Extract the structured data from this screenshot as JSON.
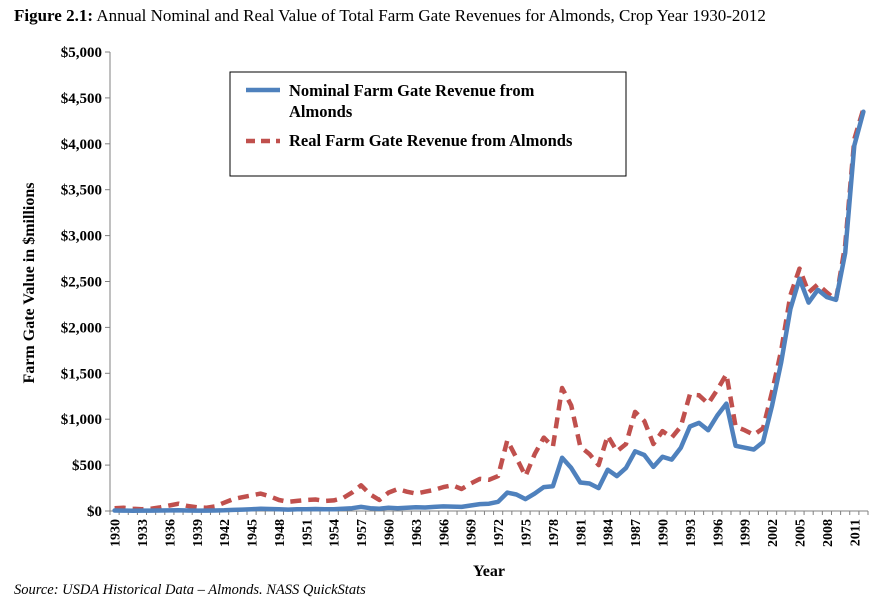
{
  "figure": {
    "label": "Figure 2.1:",
    "title": "Annual Nominal and Real Value of Total Farm Gate Revenues for Almonds, Crop Year 1930-2012",
    "source": "Source: USDA Historical Data – Almonds. NASS QuickStats"
  },
  "chart_data": {
    "type": "line",
    "xlabel": "Year",
    "ylabel": "Farm Gate Value in $millions",
    "xlim": [
      1930,
      2012
    ],
    "ylim": [
      0,
      5000
    ],
    "y_ticks": [
      0,
      500,
      1000,
      1500,
      2000,
      2500,
      3000,
      3500,
      4000,
      4500,
      5000
    ],
    "y_tick_labels": [
      "$0",
      "$500",
      "$1,000",
      "$1,500",
      "$2,000",
      "$2,500",
      "$3,000",
      "$3,500",
      "$4,000",
      "$4,500",
      "$5,000"
    ],
    "x_ticks": [
      1930,
      1933,
      1936,
      1939,
      1942,
      1945,
      1948,
      1951,
      1954,
      1957,
      1960,
      1963,
      1966,
      1969,
      1972,
      1975,
      1978,
      1981,
      1984,
      1987,
      1990,
      1993,
      1996,
      1999,
      2002,
      2005,
      2008,
      2011
    ],
    "x_tick_labels": [
      "1930",
      "1933",
      "1936",
      "1939",
      "1942",
      "1945",
      "1948",
      "1951",
      "1954",
      "1957",
      "1960",
      "1963",
      "1966",
      "1969",
      "1972",
      "1975",
      "1978",
      "1981",
      "1984",
      "1987",
      "1990",
      "1993",
      "1996",
      "1999",
      "2002",
      "2005",
      "2008",
      "2011"
    ],
    "grid": false,
    "legend_position": "top-center",
    "x": [
      1930,
      1931,
      1932,
      1933,
      1934,
      1935,
      1936,
      1937,
      1938,
      1939,
      1940,
      1941,
      1942,
      1943,
      1944,
      1945,
      1946,
      1947,
      1948,
      1949,
      1950,
      1951,
      1952,
      1953,
      1954,
      1955,
      1956,
      1957,
      1958,
      1959,
      1960,
      1961,
      1962,
      1963,
      1964,
      1965,
      1966,
      1967,
      1968,
      1969,
      1970,
      1971,
      1972,
      1973,
      1974,
      1975,
      1976,
      1977,
      1978,
      1979,
      1980,
      1981,
      1982,
      1983,
      1984,
      1985,
      1986,
      1987,
      1988,
      1989,
      1990,
      1991,
      1992,
      1993,
      1994,
      1995,
      1996,
      1997,
      1998,
      1999,
      2000,
      2001,
      2002,
      2003,
      2004,
      2005,
      2006,
      2007,
      2008,
      2009,
      2010,
      2011,
      2012
    ],
    "series": [
      {
        "name": "Nominal Farm Gate Revenue from Almonds",
        "color": "#4f81bd",
        "style": "solid",
        "values": [
          5,
          4,
          3,
          4,
          4,
          5,
          6,
          8,
          5,
          4,
          4,
          5,
          8,
          12,
          15,
          20,
          25,
          22,
          18,
          15,
          18,
          20,
          22,
          18,
          20,
          25,
          30,
          45,
          30,
          25,
          35,
          30,
          35,
          40,
          38,
          45,
          50,
          48,
          45,
          60,
          75,
          80,
          100,
          200,
          180,
          130,
          190,
          260,
          270,
          580,
          470,
          310,
          300,
          250,
          450,
          380,
          470,
          650,
          610,
          480,
          590,
          560,
          690,
          920,
          960,
          880,
          1040,
          1170,
          710,
          690,
          670,
          750,
          1150,
          1620,
          2200,
          2530,
          2270,
          2410,
          2330,
          2300,
          2810,
          3980,
          4350
        ]
      },
      {
        "name": "Real Farm Gate Revenue from Almonds",
        "color": "#c0504d",
        "style": "dashed",
        "values": [
          30,
          35,
          25,
          20,
          25,
          40,
          60,
          80,
          55,
          40,
          35,
          50,
          90,
          130,
          150,
          170,
          190,
          160,
          120,
          100,
          110,
          120,
          125,
          110,
          115,
          140,
          200,
          280,
          180,
          120,
          200,
          240,
          210,
          190,
          210,
          230,
          260,
          280,
          240,
          300,
          350,
          340,
          380,
          770,
          580,
          380,
          620,
          800,
          700,
          1340,
          1150,
          700,
          620,
          500,
          820,
          650,
          730,
          1080,
          980,
          730,
          870,
          800,
          920,
          1270,
          1260,
          1170,
          1320,
          1490,
          920,
          880,
          830,
          900,
          1300,
          1750,
          2350,
          2640,
          2380,
          2470,
          2380,
          2300,
          2900,
          4050,
          4380
        ]
      }
    ]
  }
}
